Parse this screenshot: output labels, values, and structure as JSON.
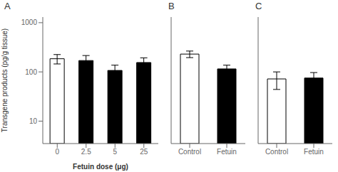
{
  "chart_data": [
    {
      "type": "bar",
      "title": "A",
      "categories": [
        "0",
        "2.5",
        "5",
        "25"
      ],
      "values": [
        185,
        170,
        107,
        155
      ],
      "errors": [
        40,
        45,
        30,
        38
      ],
      "colors": [
        "white",
        "black",
        "black",
        "black"
      ],
      "xlabel": "Fetuin dose (μg)",
      "ylabel": "Transgene products (pg/g tissue)",
      "log": "y",
      "ylim": [
        3.5,
        1300
      ],
      "yticks": [
        10,
        100,
        1000
      ],
      "grid": false
    },
    {
      "type": "bar",
      "title": "B",
      "categories": [
        "Control",
        "Fetuin"
      ],
      "values": [
        230,
        115
      ],
      "errors": [
        35,
        22
      ],
      "colors": [
        "white",
        "black"
      ],
      "log": "y",
      "ylim": [
        3.5,
        1300
      ],
      "yticks": [
        10,
        100,
        1000
      ],
      "grid": false,
      "tick_labels": "x"
    },
    {
      "type": "bar",
      "title": "C",
      "categories": [
        "Control",
        "Fetuin"
      ],
      "values": [
        72,
        75
      ],
      "errors": [
        28,
        22
      ],
      "colors": [
        "white",
        "black"
      ],
      "log": "y",
      "ylim": [
        3.5,
        1300
      ],
      "yticks": [
        10,
        100,
        1000
      ],
      "grid": false,
      "tick_labels": "x"
    }
  ]
}
